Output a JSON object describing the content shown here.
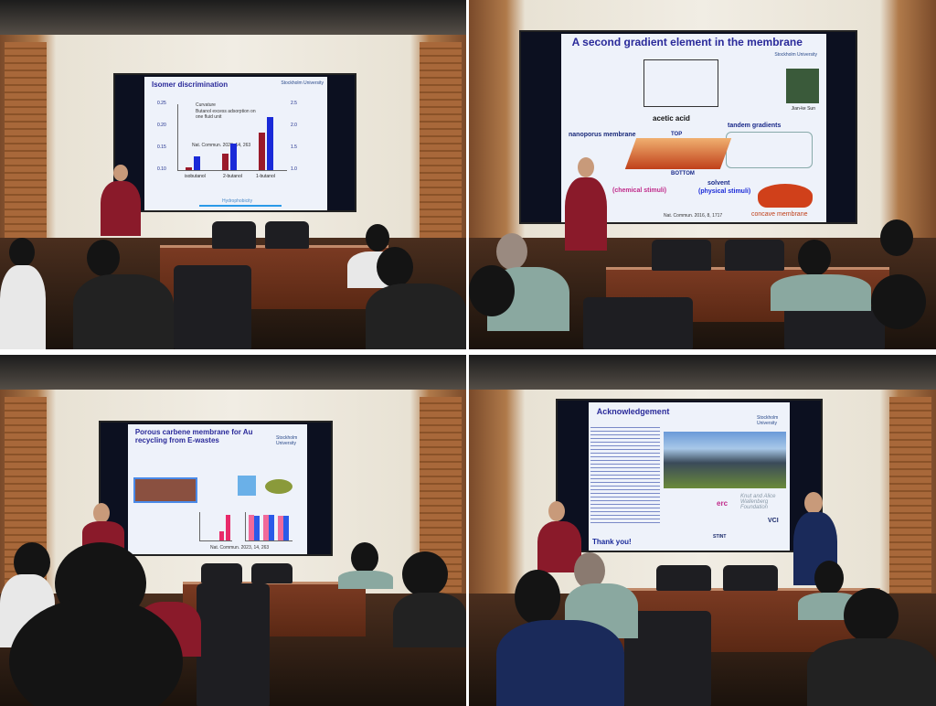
{
  "panels": [
    {
      "slide": {
        "title": "Isomer discrimination",
        "legend": [
          "Curvature",
          "Butanol excess adsorption on one fluid unit"
        ],
        "citation": "Nat. Commun. 2023, 14, 263",
        "categories": [
          "isobutanol",
          "2-butanol",
          "1-butanol"
        ],
        "curvature": [
          0.097,
          0.13,
          0.18
        ],
        "adsorption": [
          1.3,
          1.6,
          2.2
        ],
        "left_ticks": [
          "0.25",
          "0.20",
          "0.15",
          "0.10"
        ],
        "right_ticks": [
          "2.5",
          "2.0",
          "1.5",
          "1.0"
        ],
        "arrow_label": "Hydrophobicity",
        "logo": "Stockholm University"
      }
    },
    {
      "slide": {
        "title": "A second gradient element in the membrane",
        "acetic": "acetic acid",
        "nanoporous": "nanoporus membrane",
        "top": "TOP",
        "bottom": "BOTTOM",
        "tandem": "tandem gradients",
        "chemical": "(chemical stimuli)",
        "solvent": "solvent",
        "physical": "(physical stimuli)",
        "concave": "concave membrane",
        "citation": "Nat. Commun. 2016, 8, 1717",
        "person": "Jian-ke Sun",
        "logo": "Stockholm University"
      }
    },
    {
      "slide": {
        "title": "Porous carbene membrane for Au recycling from E-wastes",
        "citation": "Nat. Commun. 2023, 14, 263",
        "logo": "Stockholm University"
      }
    },
    {
      "slide": {
        "title": "Acknowledgement",
        "thanks": "Thank you!",
        "logos": [
          "erc",
          "VCI",
          "STINT"
        ],
        "foundation": "Knut and Alice Wallenberg Foundation",
        "logo": "Stockholm University"
      }
    }
  ],
  "colors": {
    "bar_red": "#9a1a2a",
    "bar_blue": "#1a2ad8",
    "slide_title": "#2a2a9a"
  }
}
